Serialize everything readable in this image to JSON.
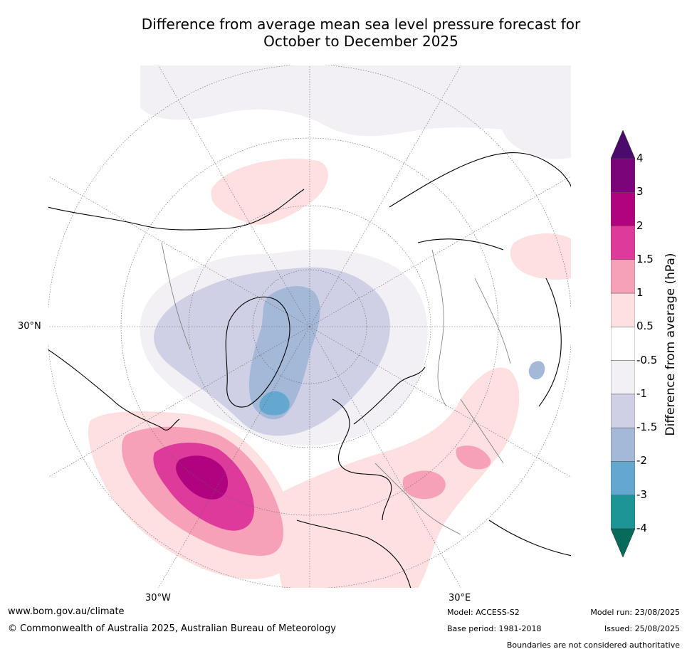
{
  "title_line1": "Difference from average mean sea level pressure forecast for",
  "title_line2": "October to December 2025",
  "map_labels": {
    "lat_30n": "30°N",
    "lon_30w": "30°W",
    "lon_30e": "30°E"
  },
  "colorbar": {
    "title": "Difference from average (hPa)",
    "levels": [
      "4",
      "3",
      "2",
      "1.5",
      "1",
      "0.5",
      "-0.5",
      "-1",
      "-1.5",
      "-2",
      "-3",
      "-4"
    ],
    "colors": [
      "#4b0a6e",
      "#7a0479",
      "#b0037f",
      "#dd3a9c",
      "#f7a1b9",
      "#fde0df",
      "#ffffff",
      "#f2eff5",
      "#cfd0e5",
      "#a4b9d8",
      "#64a8d0",
      "#1d9496",
      "#056c5c"
    ]
  },
  "footer": {
    "website": "www.bom.gov.au/climate",
    "copyright": "© Commonwealth of Australia 2025, Australian Bureau of Meteorology",
    "model": "Model: ACCESS-S2",
    "base_period": "Base period: 1981-2018",
    "model_run": "Model run: 23/08/2025",
    "issued": "Issued: 25/08/2025",
    "boundaries": "Boundaries are not considered authoritative"
  }
}
